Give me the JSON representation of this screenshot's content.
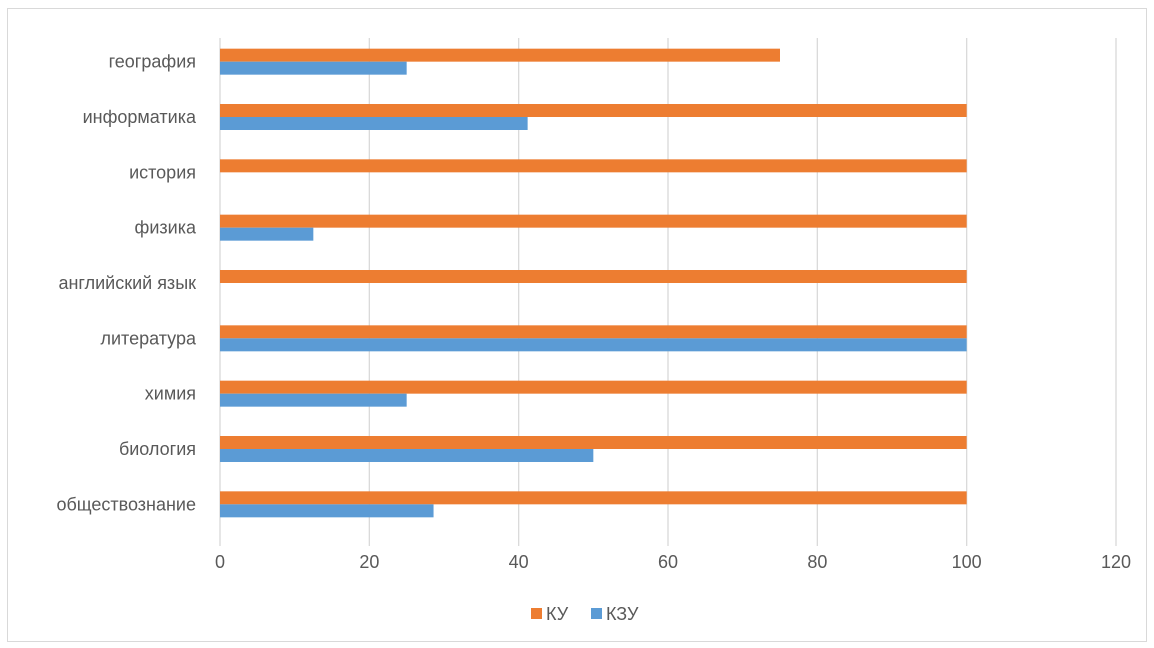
{
  "chart_data": {
    "type": "bar",
    "orientation": "horizontal",
    "categories": [
      "обществознание",
      "биология",
      "химия",
      "литература",
      "английский язык",
      "физика",
      "история",
      "информатика",
      "география"
    ],
    "series": [
      {
        "name": "КЗУ",
        "color": "#5b9bd5",
        "values": [
          28.6,
          50,
          25,
          100,
          0,
          12.5,
          0,
          41.2,
          25
        ]
      },
      {
        "name": "КУ",
        "color": "#ed7d31",
        "values": [
          100,
          100,
          100,
          100,
          100,
          100,
          100,
          100,
          75
        ]
      }
    ],
    "xlim": [
      0,
      120
    ],
    "x_ticks": [
      "0",
      "20",
      "40",
      "60",
      "80",
      "100",
      "120"
    ],
    "grid": true,
    "legend_position": "bottom",
    "legend_order": [
      "КУ",
      "КЗУ"
    ],
    "gridline_color": "#d9d9d9"
  }
}
